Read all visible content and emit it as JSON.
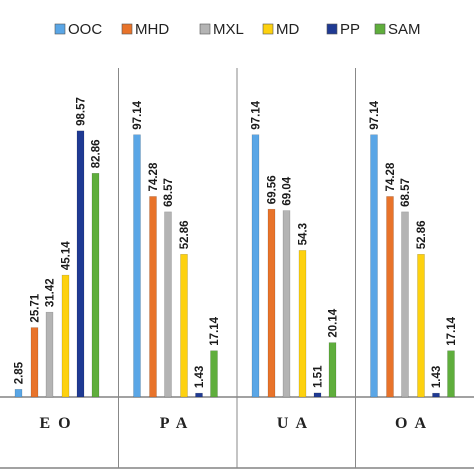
{
  "chart_data": {
    "type": "bar",
    "categories": [
      "EO",
      "PA",
      "UA",
      "OA"
    ],
    "series": [
      {
        "name": "OOC",
        "color": "#5aa6e6",
        "values": [
          2.85,
          97.14,
          97.14,
          97.14
        ]
      },
      {
        "name": "MHD",
        "color": "#e8732a",
        "values": [
          25.71,
          74.28,
          69.56,
          74.28
        ]
      },
      {
        "name": "MXL",
        "color": "#b4b4b4",
        "values": [
          31.42,
          68.57,
          69.04,
          68.57
        ]
      },
      {
        "name": "MD",
        "color": "#fdd10f",
        "values": [
          45.14,
          52.86,
          54.3,
          52.86
        ]
      },
      {
        "name": "PP",
        "color": "#1f3a93",
        "values": [
          98.57,
          1.43,
          1.51,
          1.43
        ]
      },
      {
        "name": "SAM",
        "color": "#5fae3c",
        "values": [
          82.86,
          17.14,
          20.14,
          17.14
        ]
      }
    ],
    "value_labels": [
      [
        "2.85",
        "25.71",
        "31.42",
        "45.14",
        "98.57",
        "82.86"
      ],
      [
        "97.14",
        "74.28",
        "68.57",
        "52.86",
        "1.43",
        "17.14"
      ],
      [
        "97.14",
        "69.56",
        "69.04",
        "54.3",
        "1.51",
        "20.14"
      ],
      [
        "97.14",
        "74.28",
        "68.57",
        "52.86",
        "1.43",
        "17.14"
      ]
    ],
    "ylim": [
      0,
      100
    ],
    "legend_position": "top",
    "grid": false
  }
}
